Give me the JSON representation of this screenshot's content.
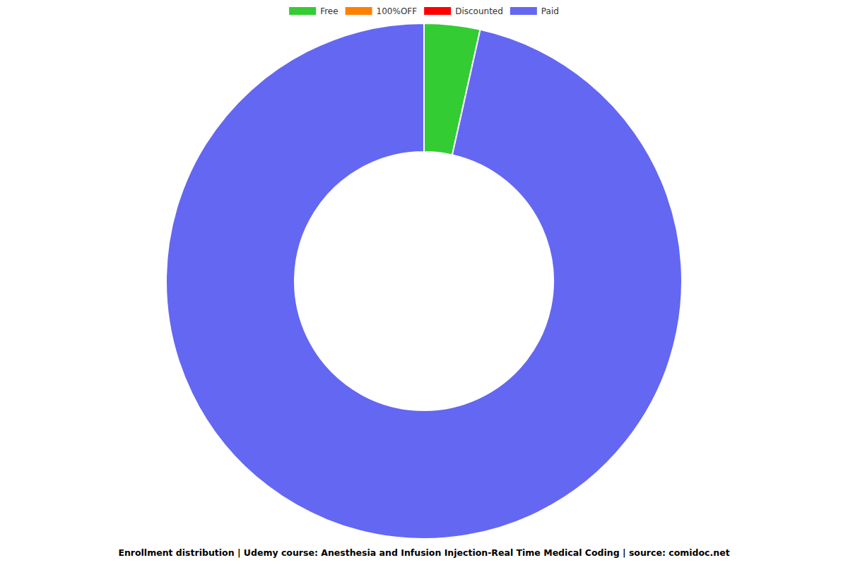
{
  "chart_data": {
    "type": "pie",
    "title": "Enrollment distribution | Udemy course: Anesthesia and Infusion Injection-Real Time Medical Coding | source: comidoc.net",
    "categories": [
      "Free",
      "100%OFF",
      "Discounted",
      "Paid"
    ],
    "values": [
      3.5,
      0,
      0,
      96.5
    ],
    "colors": [
      "#33cc33",
      "#ff8000",
      "#ff0000",
      "#6467f2"
    ],
    "legend": "top"
  }
}
